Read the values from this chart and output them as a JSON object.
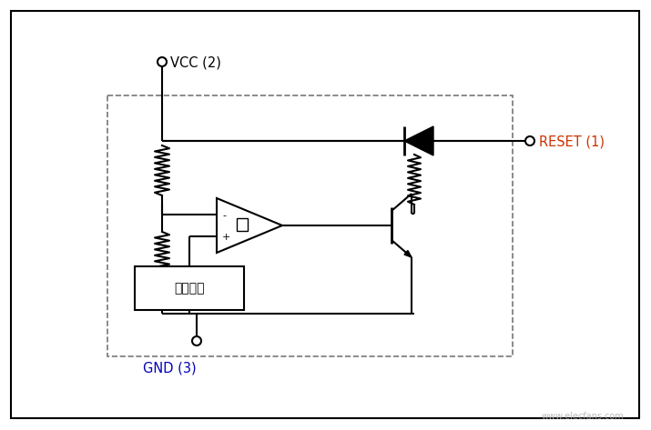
{
  "bg_color": "#ffffff",
  "border_color": "#000000",
  "dashed_color": "#777777",
  "line_color": "#000000",
  "vcc_label": "VCC (2)",
  "reset_label": "RESET (1)",
  "gnd_label": "GND (3)",
  "box_label": "比较电压",
  "minus_label": "-",
  "plus_label": "+",
  "watermark": "www.elecfans.com",
  "title_color": "#000000",
  "gnd_color": "#0000bb",
  "reset_color": "#cc3300",
  "fig_width": 7.15,
  "fig_height": 4.73
}
